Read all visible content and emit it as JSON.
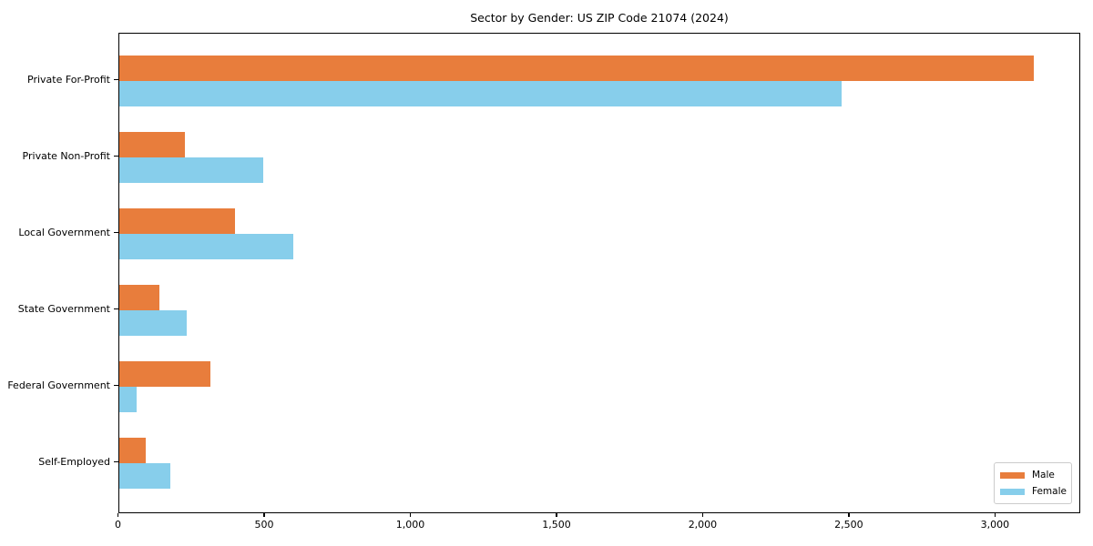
{
  "title": "Sector by Gender: US ZIP Code 21074 (2024)",
  "colors": {
    "male": "#e87d3c",
    "female": "#87ceeb",
    "spine": "#000000",
    "legend_border": "#cccccc",
    "background": "#ffffff"
  },
  "legend": {
    "position": "lower right",
    "items": [
      {
        "label": "Male",
        "color": "#e87d3c"
      },
      {
        "label": "Female",
        "color": "#87ceeb"
      }
    ]
  },
  "x_axis": {
    "tick_labels": [
      "0",
      "500",
      "1,000",
      "1,500",
      "2,000",
      "2,500",
      "3,000"
    ],
    "tick_values": [
      0,
      500,
      1000,
      1500,
      2000,
      2500,
      3000
    ]
  },
  "chart_data": {
    "type": "bar",
    "orientation": "horizontal",
    "title": "Sector by Gender: US ZIP Code 21074 (2024)",
    "categories": [
      "Private For-Profit",
      "Private Non-Profit",
      "Local Government",
      "State Government",
      "Federal Government",
      "Self-Employed"
    ],
    "series": [
      {
        "name": "Male",
        "color": "#e87d3c",
        "values": [
          3130,
          227,
          397,
          138,
          314,
          92
        ]
      },
      {
        "name": "Female",
        "color": "#87ceeb",
        "values": [
          2473,
          495,
          597,
          233,
          62,
          177
        ]
      }
    ],
    "xlabel": "",
    "ylabel": "",
    "xlim": [
      0,
      3290
    ],
    "grid": false,
    "legend_position": "lower right"
  }
}
